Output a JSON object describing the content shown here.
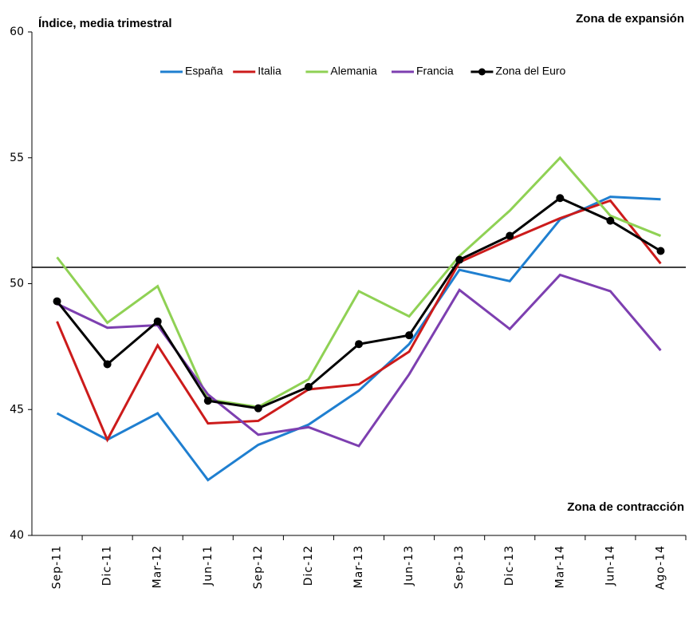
{
  "chart_data": {
    "type": "line",
    "y_label": "Índice, media trimestral",
    "annotations": [
      "Zona de expansión",
      "Zona de contracción"
    ],
    "categories": [
      "Sep-11",
      "Dic-11",
      "Mar-12",
      "Jun-11",
      "Sep-12",
      "Dic-12",
      "Mar-13",
      "Jun-13",
      "Sep-13",
      "Dic-13",
      "Mar-14",
      "Jun-14",
      "Ago-14"
    ],
    "series": [
      {
        "name": "España",
        "color": "#1f7fd0",
        "values": [
          44.85,
          43.8,
          44.85,
          42.2,
          43.6,
          44.4,
          45.75,
          47.6,
          50.55,
          50.1,
          52.55,
          53.45,
          53.35
        ]
      },
      {
        "name": "Italia",
        "color": "#cc1b1b",
        "values": [
          48.5,
          43.8,
          47.55,
          44.45,
          44.55,
          45.8,
          46.0,
          47.3,
          50.85,
          51.75,
          52.6,
          53.3,
          50.8
        ]
      },
      {
        "name": "Alemania",
        "color": "#8fd154",
        "values": [
          51.05,
          48.45,
          49.9,
          45.4,
          45.1,
          46.2,
          49.7,
          48.7,
          51.1,
          52.9,
          55.0,
          52.7,
          51.9
        ]
      },
      {
        "name": "Francia",
        "color": "#7d3fb0",
        "values": [
          49.2,
          48.25,
          48.35,
          45.6,
          44.0,
          44.3,
          43.55,
          46.4,
          49.75,
          48.2,
          50.35,
          49.7,
          47.35
        ]
      },
      {
        "name": "Zona del Euro",
        "color": "#000000",
        "markers": true,
        "values": [
          49.3,
          46.8,
          48.5,
          45.35,
          45.05,
          45.9,
          47.6,
          47.95,
          50.95,
          51.9,
          53.4,
          52.5,
          51.3
        ]
      }
    ],
    "reference_line": 50.65,
    "ylim": [
      40,
      60
    ],
    "yticks": [
      40,
      45,
      50,
      55,
      60
    ],
    "legend": "top"
  }
}
